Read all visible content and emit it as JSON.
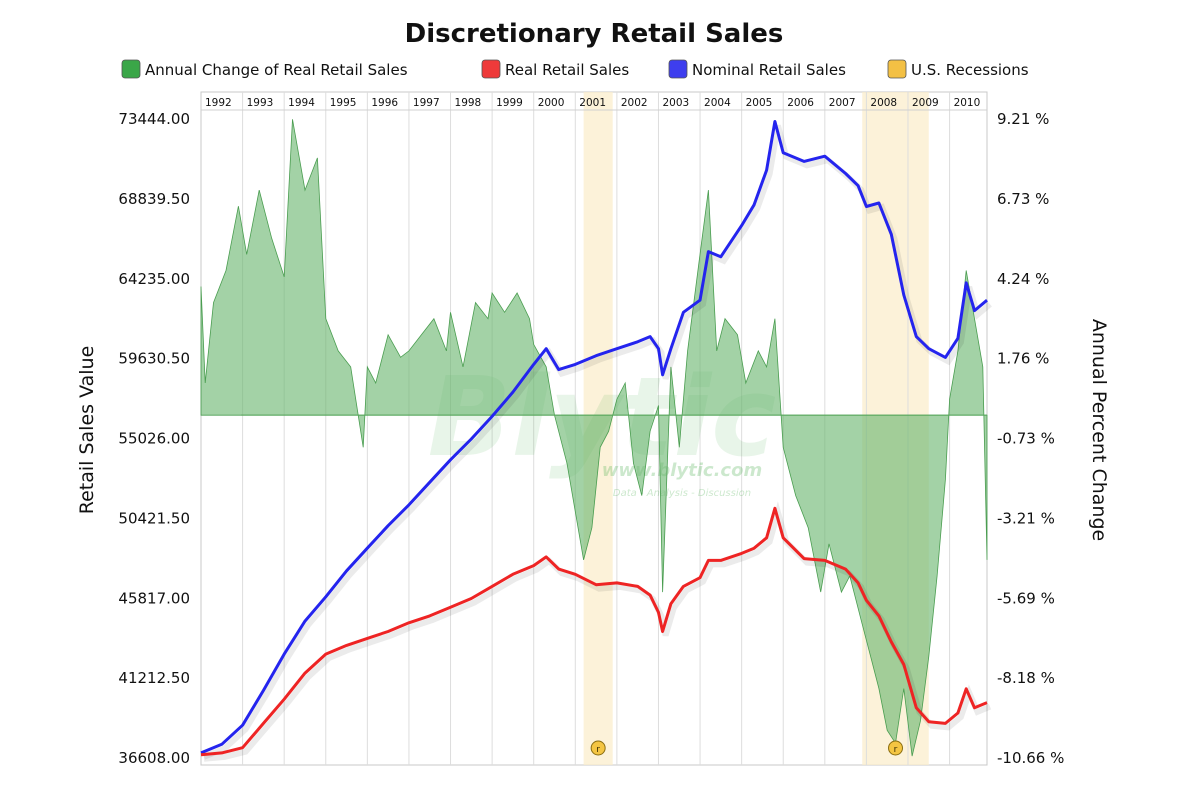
{
  "chart_data": {
    "type": "line",
    "title": "Discretionary Retail Sales",
    "y_left_label": "Retail Sales Value",
    "y_right_label": "Annual Percent Change",
    "y_left_ticks": [
      "73444.00",
      "68839.50",
      "64235.00",
      "59630.50",
      "55026.00",
      "50421.50",
      "45817.00",
      "41212.50",
      "36608.00"
    ],
    "y_left_range": [
      36608,
      73444
    ],
    "y_right_ticks": [
      "9.21 %",
      "6.73 %",
      "4.24 %",
      "1.76 %",
      "-0.73 %",
      "-3.21 %",
      "-5.69 %",
      "-8.18 %",
      "-10.66 %"
    ],
    "y_right_range": [
      -10.66,
      9.21
    ],
    "x_range": [
      1992,
      2010.9
    ],
    "years": [
      "1992",
      "1993",
      "1994",
      "1995",
      "1996",
      "1997",
      "1998",
      "1999",
      "2000",
      "2001",
      "2002",
      "2003",
      "2004",
      "2005",
      "2006",
      "2007",
      "2008",
      "2009",
      "2010"
    ],
    "grid": true,
    "legend_position": "top-center",
    "legend": [
      {
        "label": "Annual Change of Real Retail Sales",
        "color": "#3aa648"
      },
      {
        "label": "Real Retail Sales",
        "color": "#ee3a3a"
      },
      {
        "label": "Nominal Retail Sales",
        "color": "#3e3eee"
      },
      {
        "label": "U.S. Recessions",
        "color": "#f3c044"
      }
    ],
    "recessions": [
      {
        "start": 2001.2,
        "end": 2001.9,
        "marker": "r"
      },
      {
        "start": 2007.9,
        "end": 2009.5,
        "marker": "r"
      }
    ],
    "series": [
      {
        "name": "Nominal Retail Sales",
        "axis": "left",
        "color": "#2424ee",
        "points": [
          [
            1992.0,
            36900
          ],
          [
            1992.5,
            37400
          ],
          [
            1993.0,
            38500
          ],
          [
            1993.5,
            40500
          ],
          [
            1994.0,
            42600
          ],
          [
            1994.5,
            44500
          ],
          [
            1995.0,
            45900
          ],
          [
            1995.5,
            47400
          ],
          [
            1996.0,
            48700
          ],
          [
            1996.5,
            50000
          ],
          [
            1997.0,
            51200
          ],
          [
            1997.5,
            52500
          ],
          [
            1998.0,
            53800
          ],
          [
            1998.5,
            55000
          ],
          [
            1999.0,
            56300
          ],
          [
            1999.5,
            57700
          ],
          [
            2000.0,
            59300
          ],
          [
            2000.3,
            60200
          ],
          [
            2000.6,
            59000
          ],
          [
            2001.0,
            59300
          ],
          [
            2001.5,
            59800
          ],
          [
            2002.0,
            60200
          ],
          [
            2002.5,
            60600
          ],
          [
            2002.8,
            60900
          ],
          [
            2003.0,
            60200
          ],
          [
            2003.1,
            58700
          ],
          [
            2003.3,
            60200
          ],
          [
            2003.6,
            62300
          ],
          [
            2004.0,
            63000
          ],
          [
            2004.2,
            65800
          ],
          [
            2004.5,
            65500
          ],
          [
            2005.0,
            67300
          ],
          [
            2005.3,
            68500
          ],
          [
            2005.6,
            70500
          ],
          [
            2005.8,
            73300
          ],
          [
            2006.0,
            71500
          ],
          [
            2006.5,
            71000
          ],
          [
            2007.0,
            71300
          ],
          [
            2007.5,
            70300
          ],
          [
            2007.8,
            69600
          ],
          [
            2008.0,
            68400
          ],
          [
            2008.3,
            68600
          ],
          [
            2008.6,
            66800
          ],
          [
            2008.9,
            63300
          ],
          [
            2009.2,
            60900
          ],
          [
            2009.5,
            60200
          ],
          [
            2009.9,
            59700
          ],
          [
            2010.2,
            60800
          ],
          [
            2010.4,
            64000
          ],
          [
            2010.6,
            62400
          ],
          [
            2010.9,
            63000
          ]
        ]
      },
      {
        "name": "Real Retail Sales",
        "axis": "left",
        "color": "#ee2424",
        "points": [
          [
            1992.0,
            36800
          ],
          [
            1992.5,
            36900
          ],
          [
            1993.0,
            37200
          ],
          [
            1993.5,
            38600
          ],
          [
            1994.0,
            40000
          ],
          [
            1994.5,
            41500
          ],
          [
            1995.0,
            42600
          ],
          [
            1995.5,
            43100
          ],
          [
            1996.0,
            43500
          ],
          [
            1996.5,
            43900
          ],
          [
            1997.0,
            44400
          ],
          [
            1997.5,
            44800
          ],
          [
            1998.0,
            45300
          ],
          [
            1998.5,
            45800
          ],
          [
            1999.0,
            46500
          ],
          [
            1999.5,
            47200
          ],
          [
            2000.0,
            47700
          ],
          [
            2000.3,
            48200
          ],
          [
            2000.6,
            47500
          ],
          [
            2001.0,
            47200
          ],
          [
            2001.5,
            46600
          ],
          [
            2002.0,
            46700
          ],
          [
            2002.5,
            46500
          ],
          [
            2002.8,
            46000
          ],
          [
            2003.0,
            45000
          ],
          [
            2003.1,
            43900
          ],
          [
            2003.3,
            45500
          ],
          [
            2003.6,
            46500
          ],
          [
            2004.0,
            47000
          ],
          [
            2004.2,
            48000
          ],
          [
            2004.5,
            48000
          ],
          [
            2005.0,
            48400
          ],
          [
            2005.3,
            48700
          ],
          [
            2005.6,
            49300
          ],
          [
            2005.8,
            51000
          ],
          [
            2006.0,
            49300
          ],
          [
            2006.5,
            48100
          ],
          [
            2007.0,
            48000
          ],
          [
            2007.5,
            47500
          ],
          [
            2007.8,
            46700
          ],
          [
            2008.0,
            45700
          ],
          [
            2008.3,
            44800
          ],
          [
            2008.6,
            43300
          ],
          [
            2008.9,
            42000
          ],
          [
            2009.2,
            39500
          ],
          [
            2009.5,
            38700
          ],
          [
            2009.9,
            38600
          ],
          [
            2010.2,
            39200
          ],
          [
            2010.4,
            40600
          ],
          [
            2010.6,
            39500
          ],
          [
            2010.9,
            39800
          ]
        ]
      },
      {
        "name": "Annual Change of Real Retail Sales",
        "axis": "right",
        "color": "#3aa648",
        "points": [
          [
            1992.0,
            4.0
          ],
          [
            1992.1,
            1.0
          ],
          [
            1992.3,
            3.5
          ],
          [
            1992.6,
            4.5
          ],
          [
            1992.9,
            6.5
          ],
          [
            1993.1,
            5.0
          ],
          [
            1993.4,
            7.0
          ],
          [
            1993.7,
            5.5
          ],
          [
            1994.0,
            4.3
          ],
          [
            1994.2,
            9.2
          ],
          [
            1994.5,
            7.0
          ],
          [
            1994.8,
            8.0
          ],
          [
            1995.0,
            3.0
          ],
          [
            1995.3,
            2.0
          ],
          [
            1995.6,
            1.5
          ],
          [
            1995.9,
            -1.0
          ],
          [
            1996.0,
            1.5
          ],
          [
            1996.2,
            1.0
          ],
          [
            1996.5,
            2.5
          ],
          [
            1996.8,
            1.8
          ],
          [
            1997.0,
            2.0
          ],
          [
            1997.3,
            2.5
          ],
          [
            1997.6,
            3.0
          ],
          [
            1997.9,
            2.0
          ],
          [
            1998.0,
            3.2
          ],
          [
            1998.3,
            1.5
          ],
          [
            1998.6,
            3.5
          ],
          [
            1998.9,
            3.0
          ],
          [
            1999.0,
            3.8
          ],
          [
            1999.3,
            3.2
          ],
          [
            1999.6,
            3.8
          ],
          [
            1999.9,
            3.0
          ],
          [
            2000.0,
            2.2
          ],
          [
            2000.3,
            1.5
          ],
          [
            2000.5,
            0.0
          ],
          [
            2000.8,
            -1.5
          ],
          [
            2001.0,
            -3.0
          ],
          [
            2001.2,
            -4.5
          ],
          [
            2001.4,
            -3.5
          ],
          [
            2001.6,
            -1.0
          ],
          [
            2001.8,
            -0.5
          ],
          [
            2002.0,
            0.5
          ],
          [
            2002.2,
            1.0
          ],
          [
            2002.4,
            -1.5
          ],
          [
            2002.6,
            -2.5
          ],
          [
            2002.8,
            -0.5
          ],
          [
            2003.0,
            0.3
          ],
          [
            2003.1,
            -5.5
          ],
          [
            2003.3,
            1.5
          ],
          [
            2003.5,
            -1.0
          ],
          [
            2003.7,
            2.0
          ],
          [
            2004.0,
            5.0
          ],
          [
            2004.2,
            7.0
          ],
          [
            2004.4,
            2.0
          ],
          [
            2004.6,
            3.0
          ],
          [
            2004.9,
            2.5
          ],
          [
            2005.1,
            1.0
          ],
          [
            2005.4,
            2.0
          ],
          [
            2005.6,
            1.5
          ],
          [
            2005.8,
            3.0
          ],
          [
            2006.0,
            -1.0
          ],
          [
            2006.3,
            -2.5
          ],
          [
            2006.6,
            -3.5
          ],
          [
            2006.9,
            -5.5
          ],
          [
            2007.1,
            -4.0
          ],
          [
            2007.4,
            -5.5
          ],
          [
            2007.6,
            -5.0
          ],
          [
            2007.9,
            -6.5
          ],
          [
            2008.1,
            -7.5
          ],
          [
            2008.3,
            -8.5
          ],
          [
            2008.5,
            -9.8
          ],
          [
            2008.7,
            -10.2
          ],
          [
            2008.9,
            -8.5
          ],
          [
            2009.1,
            -10.6
          ],
          [
            2009.3,
            -9.5
          ],
          [
            2009.5,
            -7.5
          ],
          [
            2009.7,
            -5.0
          ],
          [
            2009.9,
            -2.0
          ],
          [
            2010.0,
            0.5
          ],
          [
            2010.2,
            2.0
          ],
          [
            2010.4,
            4.5
          ],
          [
            2010.6,
            3.0
          ],
          [
            2010.8,
            1.5
          ],
          [
            2010.9,
            -4.5
          ]
        ]
      }
    ]
  },
  "watermark": {
    "brand": "Blytic",
    "url": "www.blytic.com",
    "tagline": "Data - Analysis - Discussion"
  }
}
